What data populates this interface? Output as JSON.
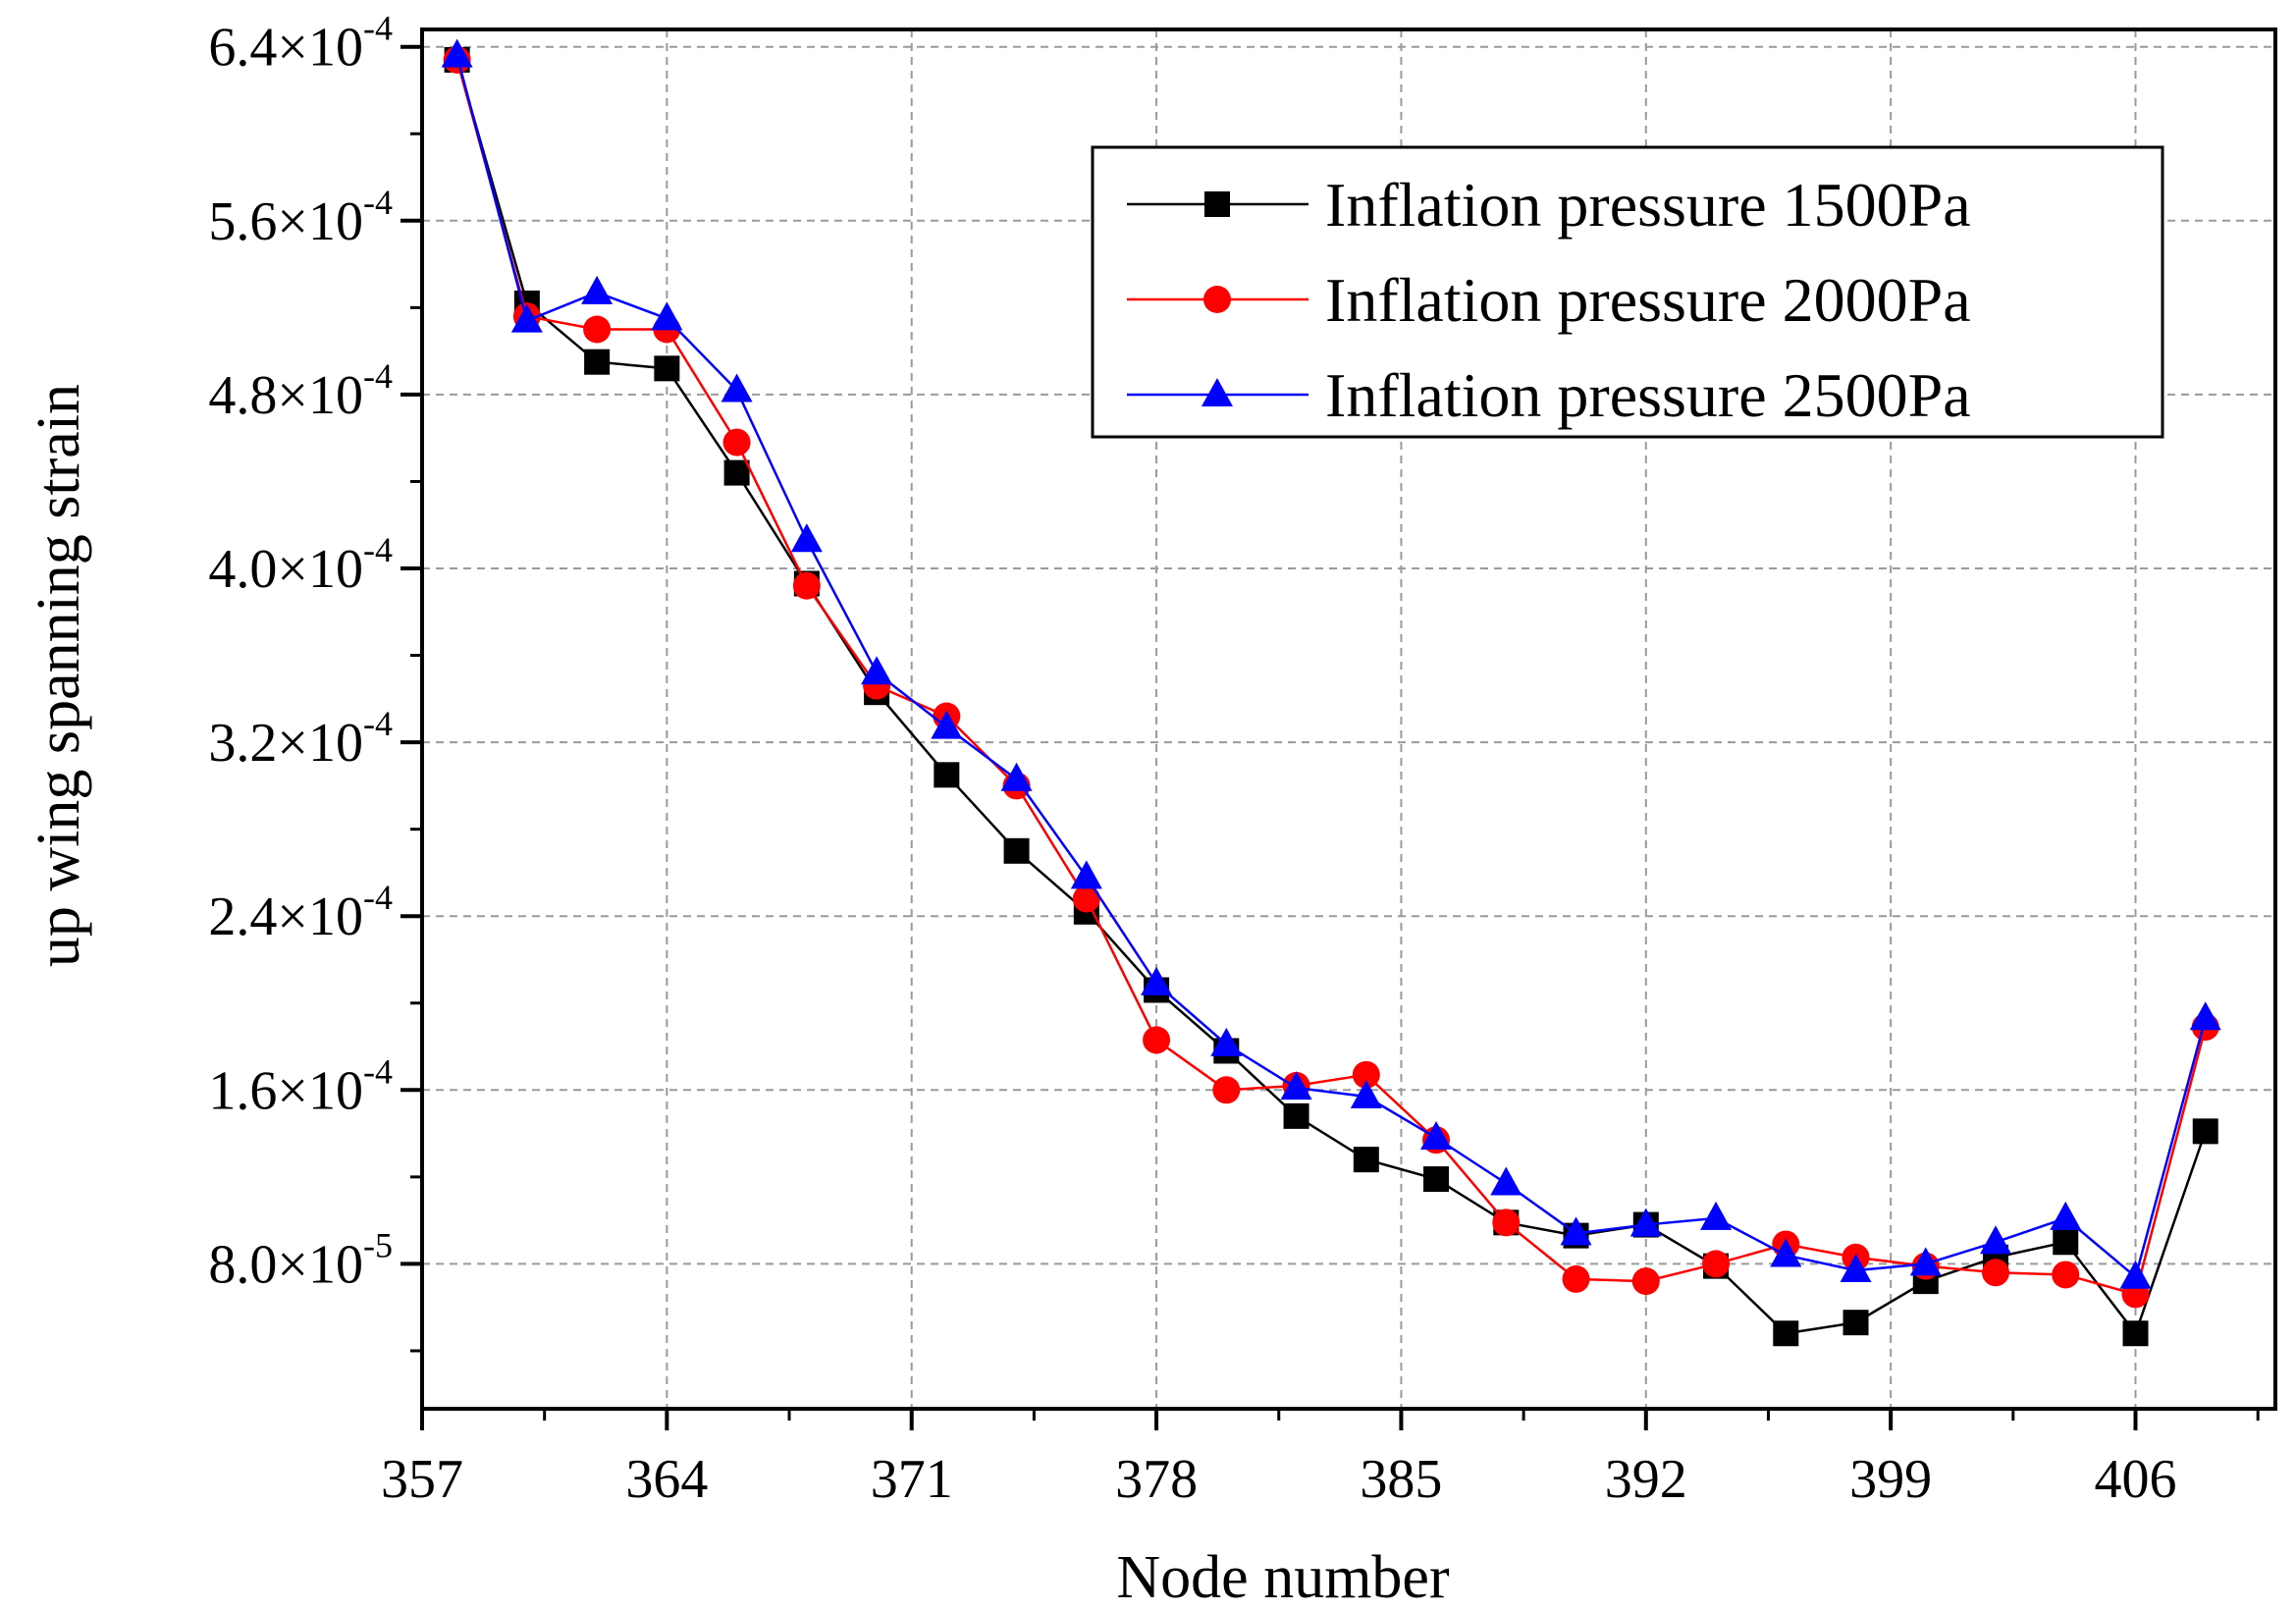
{
  "chart_data": {
    "type": "line",
    "title": "",
    "xlabel": "Node number",
    "ylabel": "up wing spanning strain",
    "xlim": [
      357,
      410
    ],
    "ylim": [
      1.333e-05,
      0.000648
    ],
    "x_ticks": [
      357,
      364,
      371,
      378,
      385,
      392,
      399,
      406
    ],
    "x_tick_labels": [
      "357",
      "364",
      "371",
      "378",
      "385",
      "392",
      "399",
      "406"
    ],
    "y_ticks": [
      {
        "value": 8e-05,
        "mantissa": "8.0",
        "times": "×10",
        "exponent": "-5"
      },
      {
        "value": 0.00016,
        "mantissa": "1.6",
        "times": "×10",
        "exponent": "-4"
      },
      {
        "value": 0.00024,
        "mantissa": "2.4",
        "times": "×10",
        "exponent": "-4"
      },
      {
        "value": 0.00032,
        "mantissa": "3.2",
        "times": "×10",
        "exponent": "-4"
      },
      {
        "value": 0.0004,
        "mantissa": "4.0",
        "times": "×10",
        "exponent": "-4"
      },
      {
        "value": 0.00048,
        "mantissa": "4.8",
        "times": "×10",
        "exponent": "-4"
      },
      {
        "value": 0.00056,
        "mantissa": "5.6",
        "times": "×10",
        "exponent": "-4"
      },
      {
        "value": 0.00064,
        "mantissa": "6.4",
        "times": "×10",
        "exponent": "-4"
      }
    ],
    "grid": true,
    "legend_position": "top-right",
    "x": [
      358,
      360,
      362,
      364,
      366,
      368,
      370,
      372,
      374,
      376,
      378,
      380,
      382,
      384,
      386,
      388,
      390,
      392,
      394,
      396,
      398,
      400,
      402,
      404,
      406,
      408
    ],
    "series": [
      {
        "name": "Inflation pressure 1500Pa",
        "color": "#000000",
        "marker": "square",
        "values": [
          0.000634,
          0.000522,
          0.000495,
          0.000492,
          0.000444,
          0.000393,
          0.000343,
          0.000305,
          0.00027,
          0.000242,
          0.000206,
          0.000178,
          0.000148,
          0.000128,
          0.000119,
          9.9e-05,
          9.3e-05,
          9.8e-05,
          7.9e-05,
          4.8e-05,
          5.3e-05,
          7.2e-05,
          8.3e-05,
          9e-05,
          4.8e-05,
          0.000141
        ]
      },
      {
        "name": "Inflation pressure 2000Pa",
        "color": "#ff0000",
        "marker": "circle",
        "values": [
          0.000634,
          0.000516,
          0.00051,
          0.00051,
          0.000458,
          0.000392,
          0.000346,
          0.000332,
          0.0003,
          0.000248,
          0.000183,
          0.00016,
          0.000162,
          0.000167,
          0.000137,
          9.9e-05,
          7.3e-05,
          7.2e-05,
          8e-05,
          8.9e-05,
          8.3e-05,
          7.9e-05,
          7.6e-05,
          7.5e-05,
          6.6e-05,
          0.000189
        ]
      },
      {
        "name": "Inflation pressure 2500Pa",
        "color": "#0000ff",
        "marker": "triangle",
        "values": [
          0.000636,
          0.000514,
          0.000527,
          0.000515,
          0.000482,
          0.000413,
          0.000352,
          0.000327,
          0.000303,
          0.000258,
          0.000209,
          0.000181,
          0.000161,
          0.000157,
          0.000138,
          0.000117,
          9.4e-05,
          9.8e-05,
          0.000101,
          8.4e-05,
          7.7e-05,
          8e-05,
          9e-05,
          0.000101,
          7.4e-05,
          0.000193
        ]
      }
    ]
  }
}
